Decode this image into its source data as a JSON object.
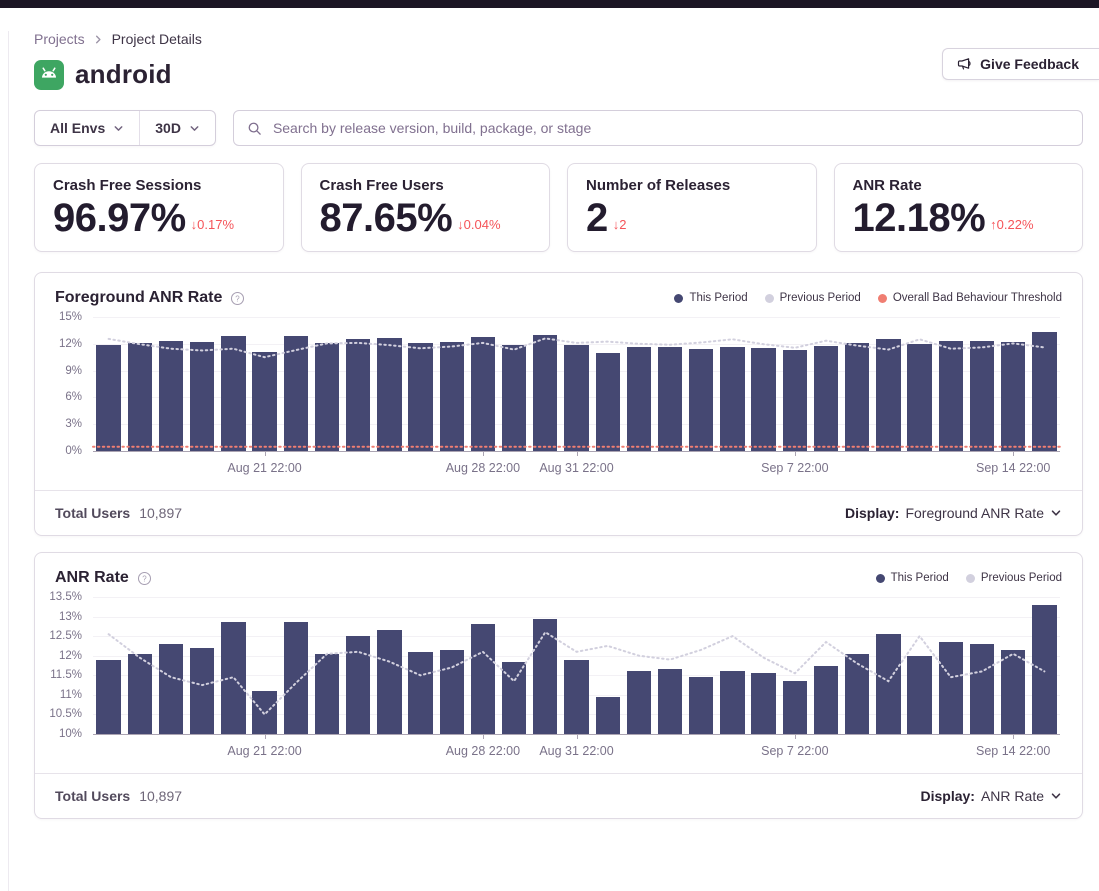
{
  "breadcrumb": {
    "projects": "Projects",
    "current": "Project Details"
  },
  "header": {
    "project_name": "android",
    "feedback_label": "Give Feedback"
  },
  "icons": {
    "project": "android-icon",
    "breadcrumb_separator": "chevron-right-icon",
    "feedback": "megaphone-icon",
    "dropdown": "chevron-down-icon",
    "search": "search-icon",
    "help": "question-circle-icon"
  },
  "filters": {
    "env_label": "All Envs",
    "period_label": "30D",
    "search_placeholder": "Search by release version, build, package, or stage"
  },
  "stats": [
    {
      "label": "Crash Free Sessions",
      "value": "96.97%",
      "arrow": "↓",
      "delta": "0.17%"
    },
    {
      "label": "Crash Free Users",
      "value": "87.65%",
      "arrow": "↓",
      "delta": "0.04%"
    },
    {
      "label": "Number of Releases",
      "value": "2",
      "arrow": "↓",
      "delta": "2"
    },
    {
      "label": "ANR Rate",
      "value": "12.18%",
      "arrow": "↑",
      "delta": "0.22%"
    }
  ],
  "colors": {
    "bar": "#454872",
    "previous_period": "#D2D0DE",
    "threshold": "#F07E72",
    "delta_red": "#F55459",
    "android_green": "#3EA662",
    "topbar": "#1C1625"
  },
  "charts": [
    {
      "title": "Foreground ANR Rate",
      "legend": [
        {
          "label": "This Period",
          "color": "#454872"
        },
        {
          "label": "Previous Period",
          "color": "#D2D0DE"
        },
        {
          "label": "Overall Bad Behaviour Threshold",
          "color": "#F07E72"
        }
      ],
      "footer": {
        "total_users_label": "Total Users",
        "total_users_value": "10,897",
        "display_label": "Display:",
        "display_value": "Foreground ANR Rate"
      }
    },
    {
      "title": "ANR Rate",
      "legend": [
        {
          "label": "This Period",
          "color": "#454872"
        },
        {
          "label": "Previous Period",
          "color": "#D2D0DE"
        }
      ],
      "footer": {
        "total_users_label": "Total Users",
        "total_users_value": "10,897",
        "display_label": "Display:",
        "display_value": "ANR Rate"
      }
    }
  ],
  "chart_data": [
    {
      "type": "bar",
      "title": "Foreground ANR Rate",
      "ylim": [
        0,
        15
      ],
      "yticks": [
        0,
        3,
        6,
        9,
        12,
        15
      ],
      "ytick_suffix": "%",
      "grid": true,
      "legend_position": "top-right",
      "x_ticks": [
        {
          "label": "Aug 21 22:00",
          "index": 5
        },
        {
          "label": "Aug 28 22:00",
          "index": 12
        },
        {
          "label": "Aug 31 22:00",
          "index": 15
        },
        {
          "label": "Sep 7 22:00",
          "index": 22
        },
        {
          "label": "Sep 14 22:00",
          "index": 29
        }
      ],
      "series": [
        {
          "name": "This Period",
          "type": "bar",
          "color": "#454872",
          "values": [
            11.9,
            12.05,
            12.3,
            12.2,
            12.85,
            11.1,
            12.85,
            12.05,
            12.5,
            12.65,
            12.1,
            12.15,
            12.8,
            11.85,
            12.95,
            11.9,
            10.95,
            11.6,
            11.65,
            11.45,
            11.6,
            11.55,
            11.35,
            11.75,
            12.05,
            12.55,
            12.0,
            12.35,
            12.3,
            12.15,
            13.3
          ]
        },
        {
          "name": "Previous Period",
          "type": "dotted-line",
          "color": "#D2D0DE",
          "values": [
            12.55,
            11.95,
            11.45,
            11.25,
            11.45,
            10.5,
            11.3,
            12.05,
            12.1,
            11.85,
            11.5,
            11.7,
            12.1,
            11.35,
            12.6,
            12.1,
            12.25,
            12.0,
            11.9,
            12.15,
            12.5,
            11.95,
            11.55,
            12.35,
            11.8,
            11.35,
            12.5,
            11.45,
            11.6,
            12.05,
            11.6
          ]
        },
        {
          "name": "Overall Bad Behaviour Threshold",
          "type": "dotted-line",
          "color": "#F07E72",
          "constant": 0.47
        }
      ]
    },
    {
      "type": "bar",
      "title": "ANR Rate",
      "ylim": [
        10,
        13.5
      ],
      "yticks": [
        10,
        10.5,
        11,
        11.5,
        12,
        12.5,
        13,
        13.5
      ],
      "ytick_suffix": "%",
      "grid": true,
      "legend_position": "top-right",
      "x_ticks": [
        {
          "label": "Aug 21 22:00",
          "index": 5
        },
        {
          "label": "Aug 28 22:00",
          "index": 12
        },
        {
          "label": "Aug 31 22:00",
          "index": 15
        },
        {
          "label": "Sep 7 22:00",
          "index": 22
        },
        {
          "label": "Sep 14 22:00",
          "index": 29
        }
      ],
      "series": [
        {
          "name": "This Period",
          "type": "bar",
          "color": "#454872",
          "values": [
            11.9,
            12.05,
            12.3,
            12.2,
            12.85,
            11.1,
            12.85,
            12.05,
            12.5,
            12.65,
            12.1,
            12.15,
            12.8,
            11.85,
            12.95,
            11.9,
            10.95,
            11.6,
            11.65,
            11.45,
            11.6,
            11.55,
            11.35,
            11.75,
            12.05,
            12.55,
            12.0,
            12.35,
            12.3,
            12.15,
            13.3
          ]
        },
        {
          "name": "Previous Period",
          "type": "dotted-line",
          "color": "#D2D0DE",
          "values": [
            12.55,
            11.95,
            11.45,
            11.25,
            11.45,
            10.5,
            11.3,
            12.05,
            12.1,
            11.85,
            11.5,
            11.7,
            12.1,
            11.35,
            12.6,
            12.1,
            12.25,
            12.0,
            11.9,
            12.15,
            12.5,
            11.95,
            11.55,
            12.35,
            11.8,
            11.35,
            12.5,
            11.45,
            11.6,
            12.05,
            11.6
          ]
        }
      ]
    }
  ]
}
